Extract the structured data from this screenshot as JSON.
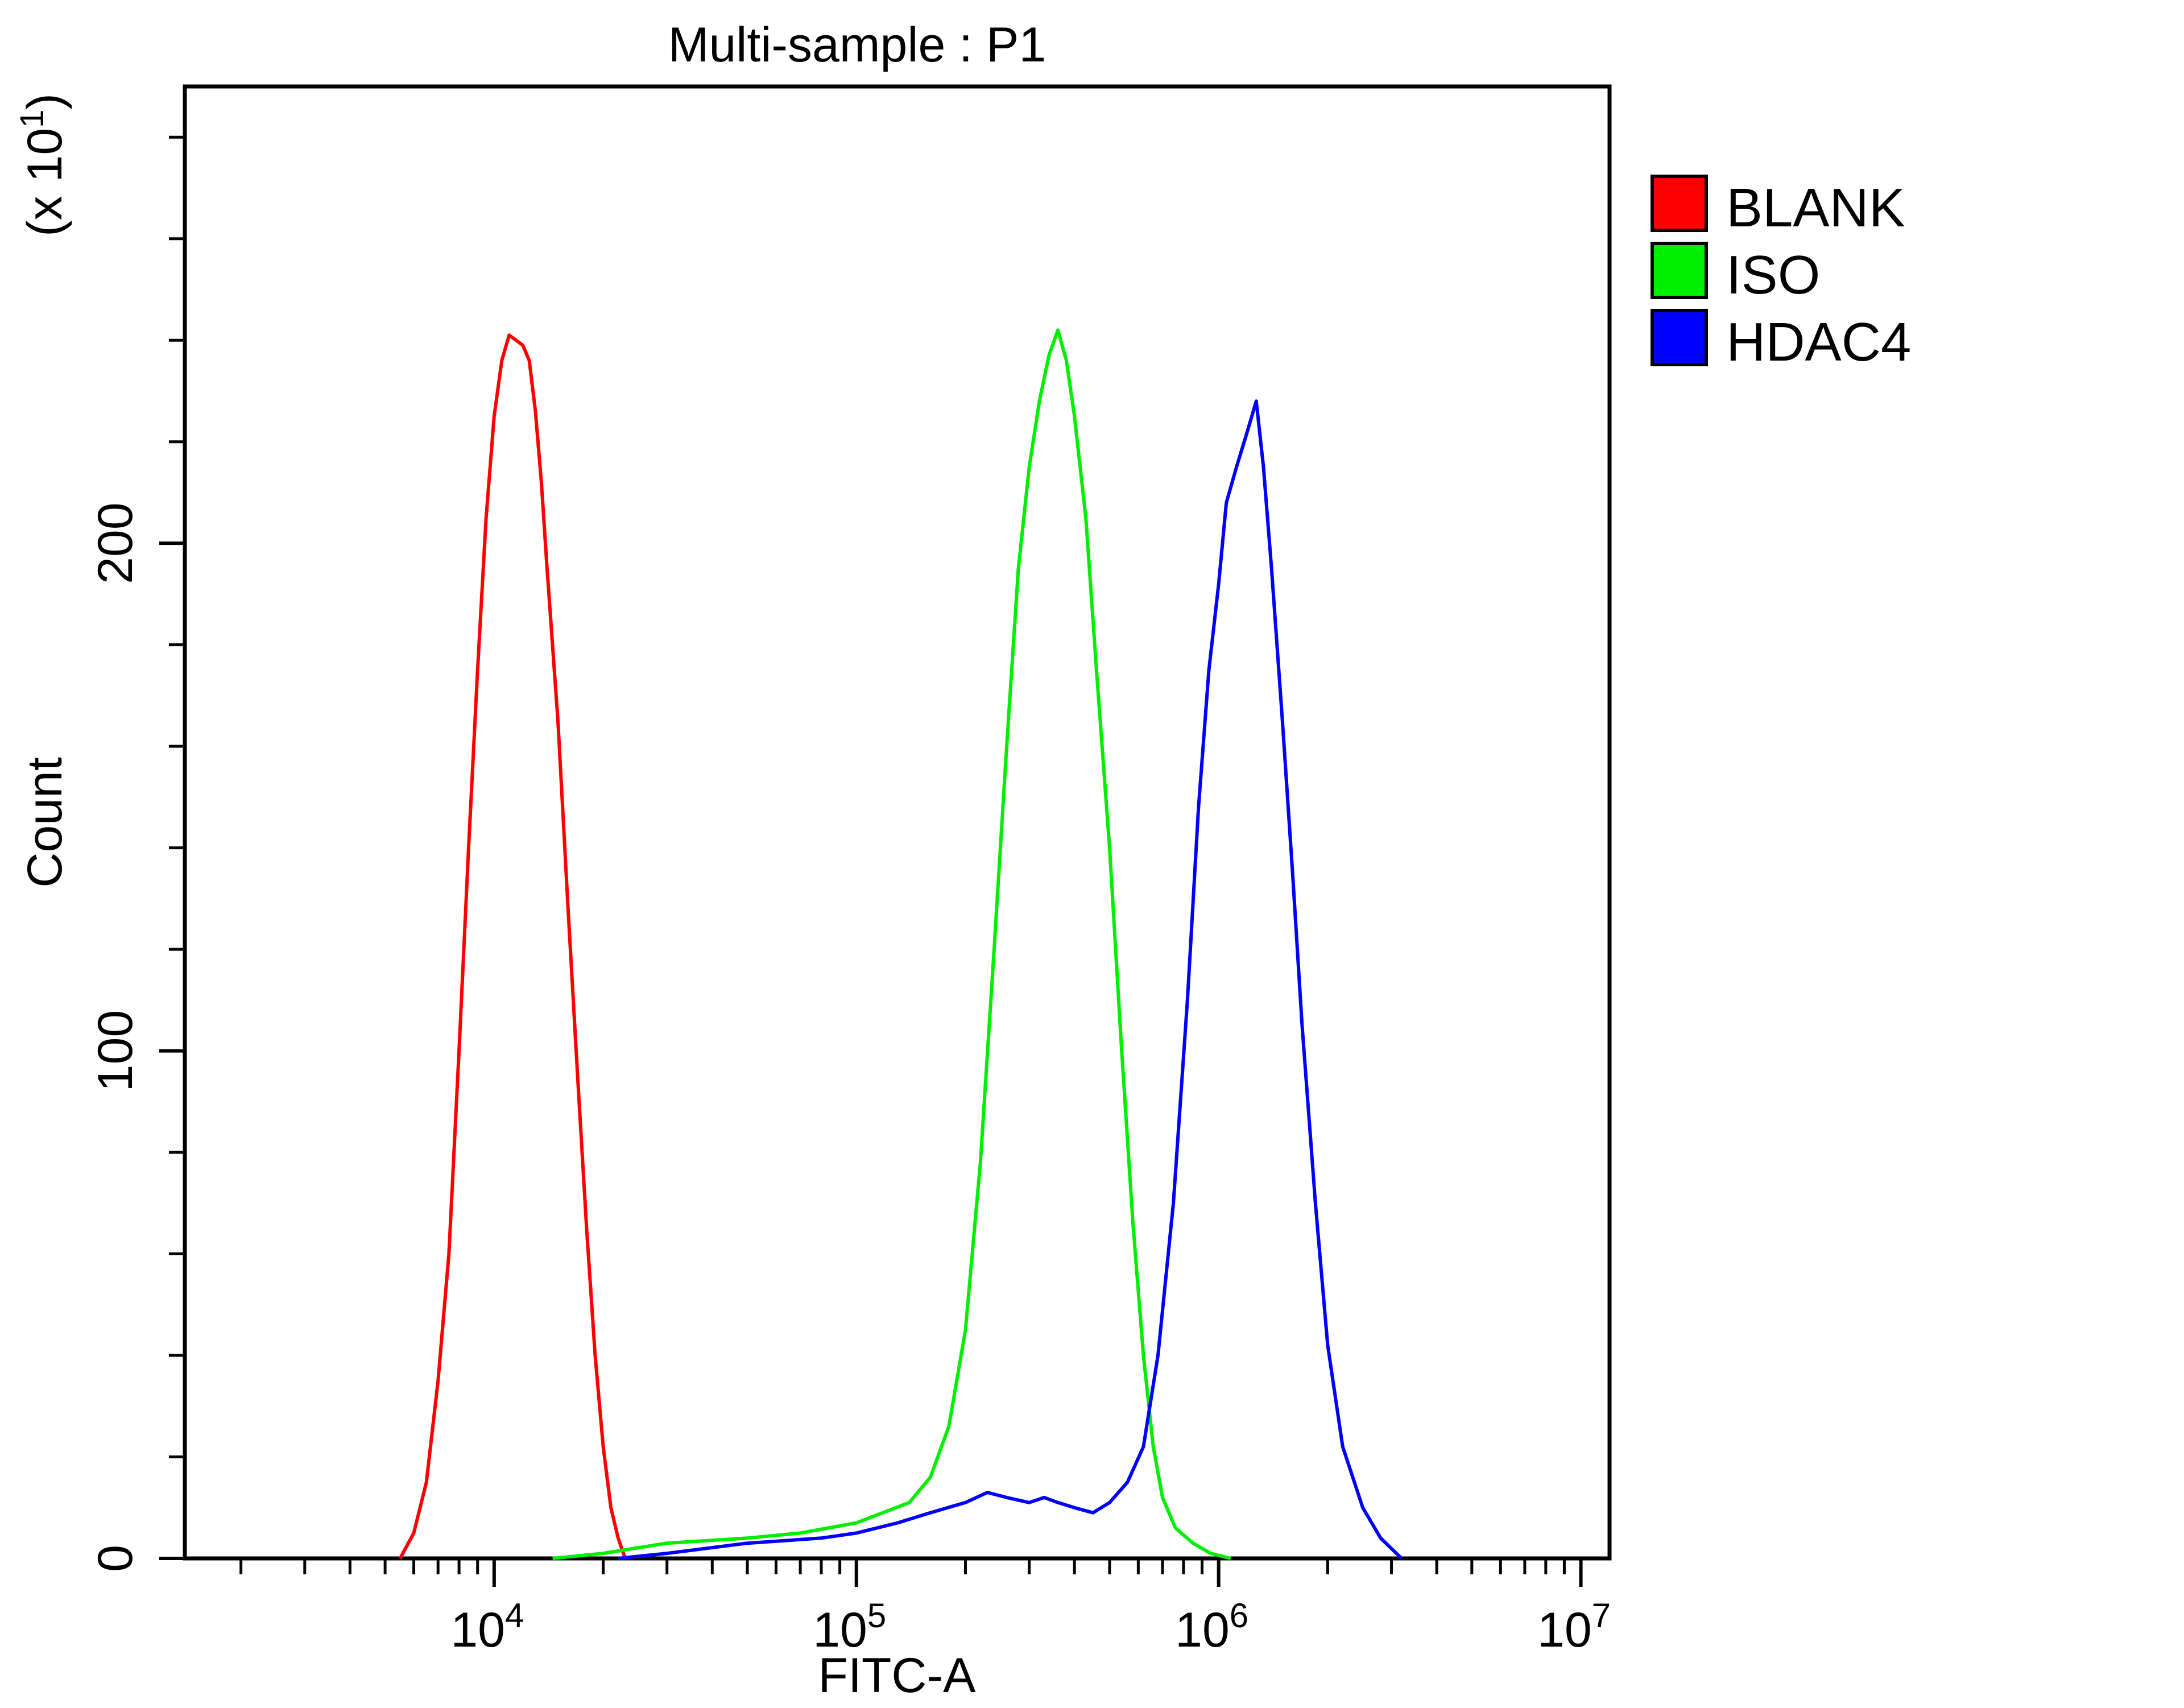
{
  "chart_data": {
    "type": "line",
    "title": "Multi-sample : P1",
    "xlabel": "FITC-A",
    "ylabel": "Count",
    "y_multiplier_label": "(x 10",
    "y_multiplier_exponent": "1",
    "x_scale": "log",
    "xlim": [
      1400,
      12000000
    ],
    "ylim": [
      0,
      290
    ],
    "x_ticks": [
      {
        "value": 10000,
        "base": "10",
        "exp": "4"
      },
      {
        "value": 100000,
        "base": "10",
        "exp": "5"
      },
      {
        "value": 1000000,
        "base": "10",
        "exp": "6"
      },
      {
        "value": 10000000,
        "base": "10",
        "exp": "7"
      }
    ],
    "y_ticks": [
      {
        "value": 0,
        "label": "0"
      },
      {
        "value": 100,
        "label": "100"
      },
      {
        "value": 200,
        "label": "200"
      }
    ],
    "grid": false,
    "legend_position": "right",
    "series": [
      {
        "name": "BLANK",
        "color": "#ff0000",
        "points": [
          [
            5500,
            0
          ],
          [
            6000,
            5
          ],
          [
            6500,
            15
          ],
          [
            7000,
            35
          ],
          [
            7500,
            60
          ],
          [
            8000,
            100
          ],
          [
            8500,
            140
          ],
          [
            9000,
            175
          ],
          [
            9500,
            205
          ],
          [
            10000,
            225
          ],
          [
            10500,
            236
          ],
          [
            11000,
            241
          ],
          [
            11500,
            240
          ],
          [
            12000,
            239
          ],
          [
            12500,
            236
          ],
          [
            13000,
            226
          ],
          [
            13500,
            212
          ],
          [
            14000,
            195
          ],
          [
            15000,
            165
          ],
          [
            16000,
            128
          ],
          [
            17000,
            95
          ],
          [
            18000,
            65
          ],
          [
            19000,
            40
          ],
          [
            20000,
            22
          ],
          [
            21000,
            10
          ],
          [
            22000,
            4
          ],
          [
            23000,
            0
          ]
        ]
      },
      {
        "name": "ISO",
        "color": "#00ee00",
        "points": [
          [
            14500,
            0
          ],
          [
            20000,
            1
          ],
          [
            30000,
            3
          ],
          [
            50000,
            4
          ],
          [
            70000,
            5
          ],
          [
            100000,
            7
          ],
          [
            140000,
            11
          ],
          [
            160000,
            16
          ],
          [
            180000,
            26
          ],
          [
            200000,
            45
          ],
          [
            220000,
            78
          ],
          [
            240000,
            120
          ],
          [
            260000,
            160
          ],
          [
            280000,
            195
          ],
          [
            300000,
            215
          ],
          [
            320000,
            228
          ],
          [
            340000,
            237
          ],
          [
            360000,
            242
          ],
          [
            380000,
            236
          ],
          [
            400000,
            225
          ],
          [
            430000,
            205
          ],
          [
            460000,
            175
          ],
          [
            500000,
            140
          ],
          [
            540000,
            100
          ],
          [
            580000,
            66
          ],
          [
            620000,
            40
          ],
          [
            660000,
            22
          ],
          [
            700000,
            12
          ],
          [
            760000,
            6
          ],
          [
            850000,
            3
          ],
          [
            950000,
            1
          ],
          [
            1080000,
            0
          ]
        ]
      },
      {
        "name": "HDAC4",
        "color": "#0000ff",
        "points": [
          [
            22000,
            0
          ],
          [
            30000,
            1
          ],
          [
            50000,
            3
          ],
          [
            80000,
            4
          ],
          [
            100000,
            5
          ],
          [
            130000,
            7
          ],
          [
            160000,
            9
          ],
          [
            200000,
            11
          ],
          [
            230000,
            13
          ],
          [
            260000,
            12
          ],
          [
            300000,
            11
          ],
          [
            330000,
            12
          ],
          [
            360000,
            11
          ],
          [
            400000,
            10
          ],
          [
            450000,
            9
          ],
          [
            500000,
            11
          ],
          [
            560000,
            15
          ],
          [
            620000,
            22
          ],
          [
            680000,
            40
          ],
          [
            750000,
            70
          ],
          [
            820000,
            110
          ],
          [
            880000,
            148
          ],
          [
            940000,
            175
          ],
          [
            1000000,
            192
          ],
          [
            1050000,
            208
          ],
          [
            1120000,
            215
          ],
          [
            1200000,
            222
          ],
          [
            1270000,
            228
          ],
          [
            1330000,
            215
          ],
          [
            1400000,
            195
          ],
          [
            1500000,
            165
          ],
          [
            1600000,
            135
          ],
          [
            1700000,
            105
          ],
          [
            1850000,
            70
          ],
          [
            2000000,
            42
          ],
          [
            2200000,
            22
          ],
          [
            2500000,
            10
          ],
          [
            2800000,
            4
          ],
          [
            3200000,
            0
          ]
        ]
      }
    ]
  }
}
